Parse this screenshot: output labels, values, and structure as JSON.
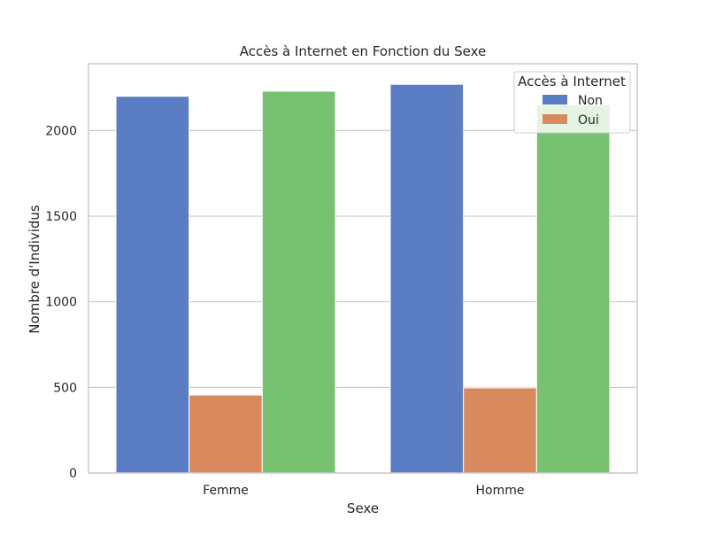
{
  "chart_data": {
    "type": "bar",
    "title": "Accès à Internet en Fonction du Sexe",
    "xlabel": "Sexe",
    "ylabel": "Nombre d'Individus",
    "categories": [
      "Femme",
      "Homme"
    ],
    "ylim": [
      0,
      2390
    ],
    "yticks": [
      0,
      500,
      1000,
      1500,
      2000
    ],
    "grid": true,
    "legend": {
      "title": "Accès à Internet",
      "placement": "top-right",
      "entries": [
        "Non",
        "Oui"
      ]
    },
    "series": [
      {
        "name": "Non",
        "color": "#5a7dc3",
        "values": [
          2200,
          2270
        ]
      },
      {
        "name": "Oui",
        "color": "#d88a5e",
        "values": [
          455,
          497
        ]
      },
      {
        "color": "#77c270",
        "values": [
          2230,
          2150
        ]
      }
    ]
  }
}
